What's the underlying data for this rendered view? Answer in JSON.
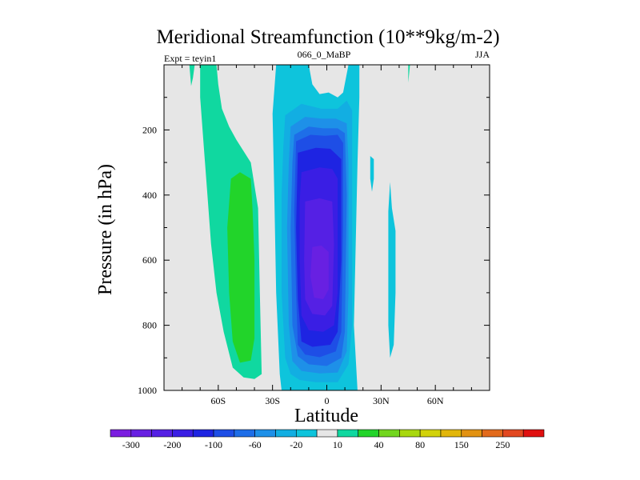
{
  "chart_data": {
    "type": "heatmap",
    "title": "Meridional Streamfunction (10**9kg/m-2)",
    "left_label": "Expt = teyin1",
    "center_label": "066_0_MaBP",
    "right_label": "JJA",
    "xlabel": "Latitude",
    "ylabel": "Pressure (in hPa)",
    "xlim": [
      -90,
      90
    ],
    "ylim": [
      1000,
      0
    ],
    "x_ticks": [
      {
        "value": -60,
        "label": "60S"
      },
      {
        "value": -30,
        "label": "30S"
      },
      {
        "value": 0,
        "label": "0"
      },
      {
        "value": 30,
        "label": "30N"
      },
      {
        "value": 60,
        "label": "60N"
      }
    ],
    "y_ticks": [
      {
        "value": 200,
        "label": "200"
      },
      {
        "value": 400,
        "label": "400"
      },
      {
        "value": 600,
        "label": "600"
      },
      {
        "value": 800,
        "label": "800"
      },
      {
        "value": 1000,
        "label": "1000"
      }
    ],
    "colorbar": {
      "colors": [
        "#7b1ee0",
        "#6820e2",
        "#5520e4",
        "#3a1ee4",
        "#1e24e2",
        "#1e4ee6",
        "#1e6ee8",
        "#1e90e8",
        "#12aee2",
        "#0ec4dc",
        "#e6e6e6",
        "#10d8a0",
        "#22d42a",
        "#72d61e",
        "#a8d80e",
        "#d2d20a",
        "#e2b60a",
        "#e29212",
        "#e26a1c",
        "#e24820",
        "#e01010"
      ],
      "tick_labels": [
        {
          "after_box": 1,
          "label": "-300"
        },
        {
          "after_box": 3,
          "label": "-200"
        },
        {
          "after_box": 5,
          "label": "-100"
        },
        {
          "after_box": 7,
          "label": "-60"
        },
        {
          "after_box": 9,
          "label": "-20"
        },
        {
          "after_box": 11,
          "label": "10"
        },
        {
          "after_box": 13,
          "label": "40"
        },
        {
          "after_box": 15,
          "label": "80"
        },
        {
          "after_box": 17,
          "label": "150"
        },
        {
          "after_box": 19,
          "label": "250"
        }
      ]
    },
    "background_color": "#e6e6e6",
    "contour_regions": [
      {
        "name": "teal-sh-tongue",
        "color": "#10d8a0",
        "lat_p": [
          [
            -70,
            0
          ],
          [
            -61,
            0
          ],
          [
            -60,
            60
          ],
          [
            -58,
            135
          ],
          [
            -54,
            190
          ],
          [
            -50,
            230
          ],
          [
            -42,
            300
          ],
          [
            -38,
            440
          ],
          [
            -37,
            700
          ],
          [
            -36,
            950
          ],
          [
            -40,
            965
          ],
          [
            -46,
            960
          ],
          [
            -52,
            930
          ],
          [
            -57,
            820
          ],
          [
            -61,
            700
          ],
          [
            -64,
            550
          ],
          [
            -66,
            400
          ],
          [
            -68,
            250
          ],
          [
            -70,
            100
          ]
        ]
      },
      {
        "name": "green-sh-core",
        "color": "#22d42a",
        "lat_p": [
          [
            -42,
            350
          ],
          [
            -48,
            330
          ],
          [
            -53,
            350
          ],
          [
            -55,
            500
          ],
          [
            -54,
            700
          ],
          [
            -52,
            850
          ],
          [
            -48,
            915
          ],
          [
            -42,
            908
          ],
          [
            -40,
            840
          ],
          [
            -40,
            600
          ],
          [
            -41,
            450
          ]
        ]
      },
      {
        "name": "teal-sh-sliver",
        "color": "#10d8a0",
        "lat_p": [
          [
            -76,
            0
          ],
          [
            -73,
            0
          ],
          [
            -74,
            40
          ],
          [
            -75,
            65
          ]
        ]
      },
      {
        "name": "teal-nh-speck",
        "color": "#10d8a0",
        "lat_p": [
          [
            45,
            0
          ],
          [
            46,
            0
          ],
          [
            45,
            55
          ]
        ]
      },
      {
        "name": "cyan-outer",
        "color": "#0ec4dc",
        "lat_p": [
          [
            -28,
            0
          ],
          [
            -10,
            0
          ],
          [
            -8,
            60
          ],
          [
            -4,
            90
          ],
          [
            1,
            85
          ],
          [
            6,
            100
          ],
          [
            9,
            85
          ],
          [
            12,
            0
          ],
          [
            18,
            0
          ],
          [
            18,
            100
          ],
          [
            17,
            300
          ],
          [
            15,
            800
          ],
          [
            17,
            1000
          ],
          [
            -25,
            1000
          ],
          [
            -26,
            950
          ],
          [
            -28,
            700
          ],
          [
            -29,
            400
          ],
          [
            -30,
            150
          ]
        ]
      },
      {
        "name": "cyan-lobe-nh",
        "color": "#0ec4dc",
        "lat_p": [
          [
            35,
            360
          ],
          [
            36,
            440
          ],
          [
            38,
            510
          ],
          [
            38,
            700
          ],
          [
            37,
            860
          ],
          [
            35,
            900
          ],
          [
            34,
            800
          ],
          [
            34,
            600
          ],
          [
            34,
            450
          ]
        ]
      },
      {
        "name": "cyan-ridge-nh",
        "color": "#0ec4dc",
        "lat_p": [
          [
            24,
            280
          ],
          [
            26,
            290
          ],
          [
            26,
            350
          ],
          [
            25,
            390
          ],
          [
            24,
            350
          ]
        ]
      },
      {
        "name": "blue-3",
        "color": "#12aee2",
        "lat_p": [
          [
            -23,
            155
          ],
          [
            -14,
            120
          ],
          [
            -3,
            135
          ],
          [
            6,
            135
          ],
          [
            11,
            110
          ],
          [
            14,
            140
          ],
          [
            14,
            800
          ],
          [
            12,
            920
          ],
          [
            6,
            975
          ],
          [
            -6,
            975
          ],
          [
            -15,
            968
          ],
          [
            -20,
            950
          ],
          [
            -23,
            900
          ],
          [
            -25,
            700
          ],
          [
            -25,
            400
          ],
          [
            -24,
            250
          ]
        ]
      },
      {
        "name": "blue-4",
        "color": "#1e90e8",
        "lat_p": [
          [
            -20,
            190
          ],
          [
            -12,
            160
          ],
          [
            -3,
            165
          ],
          [
            5,
            165
          ],
          [
            11,
            180
          ],
          [
            12,
            300
          ],
          [
            12,
            700
          ],
          [
            11,
            880
          ],
          [
            6,
            945
          ],
          [
            -4,
            948
          ],
          [
            -14,
            940
          ],
          [
            -19,
            910
          ],
          [
            -21,
            800
          ],
          [
            -22,
            500
          ],
          [
            -21,
            300
          ]
        ]
      },
      {
        "name": "blue-5",
        "color": "#1e6ee8",
        "lat_p": [
          [
            -18,
            215
          ],
          [
            -10,
            190
          ],
          [
            -2,
            195
          ],
          [
            6,
            195
          ],
          [
            10,
            210
          ],
          [
            11,
            400
          ],
          [
            10,
            820
          ],
          [
            8,
            900
          ],
          [
            0,
            925
          ],
          [
            -10,
            920
          ],
          [
            -16,
            895
          ],
          [
            -19,
            800
          ],
          [
            -20,
            500
          ],
          [
            -19,
            300
          ]
        ]
      },
      {
        "name": "blue-6",
        "color": "#1e4ee6",
        "lat_p": [
          [
            -17,
            235
          ],
          [
            -9,
            215
          ],
          [
            -1,
            218
          ],
          [
            6,
            215
          ],
          [
            9,
            240
          ],
          [
            9,
            500
          ],
          [
            8,
            820
          ],
          [
            5,
            880
          ],
          [
            -4,
            898
          ],
          [
            -12,
            890
          ],
          [
            -16,
            860
          ],
          [
            -17,
            700
          ],
          [
            -18,
            450
          ]
        ]
      },
      {
        "name": "blue-7",
        "color": "#1e24e2",
        "lat_p": [
          [
            -16,
            270
          ],
          [
            -6,
            255
          ],
          [
            2,
            258
          ],
          [
            8,
            290
          ],
          [
            8,
            600
          ],
          [
            6,
            820
          ],
          [
            2,
            860
          ],
          [
            -8,
            866
          ],
          [
            -14,
            850
          ],
          [
            -16,
            720
          ],
          [
            -17,
            500
          ]
        ]
      },
      {
        "name": "indigo-8",
        "color": "#3a1ee4",
        "lat_p": [
          [
            -14,
            330
          ],
          [
            -4,
            315
          ],
          [
            3,
            320
          ],
          [
            6,
            350
          ],
          [
            6,
            700
          ],
          [
            4,
            800
          ],
          [
            -2,
            820
          ],
          [
            -10,
            815
          ],
          [
            -14,
            770
          ],
          [
            -15,
            600
          ],
          [
            -15,
            420
          ]
        ]
      },
      {
        "name": "violet-9",
        "color": "#5520e4",
        "lat_p": [
          [
            -12,
            420
          ],
          [
            -4,
            410
          ],
          [
            3,
            420
          ],
          [
            4,
            550
          ],
          [
            3,
            740
          ],
          [
            -1,
            770
          ],
          [
            -8,
            765
          ],
          [
            -12,
            720
          ],
          [
            -12.5,
            600
          ]
        ]
      },
      {
        "name": "violet-core",
        "color": "#6820e2",
        "lat_p": [
          [
            -8,
            560
          ],
          [
            -3,
            555
          ],
          [
            1,
            575
          ],
          [
            1,
            690
          ],
          [
            -2,
            720
          ],
          [
            -7,
            715
          ],
          [
            -9,
            650
          ]
        ]
      }
    ]
  }
}
